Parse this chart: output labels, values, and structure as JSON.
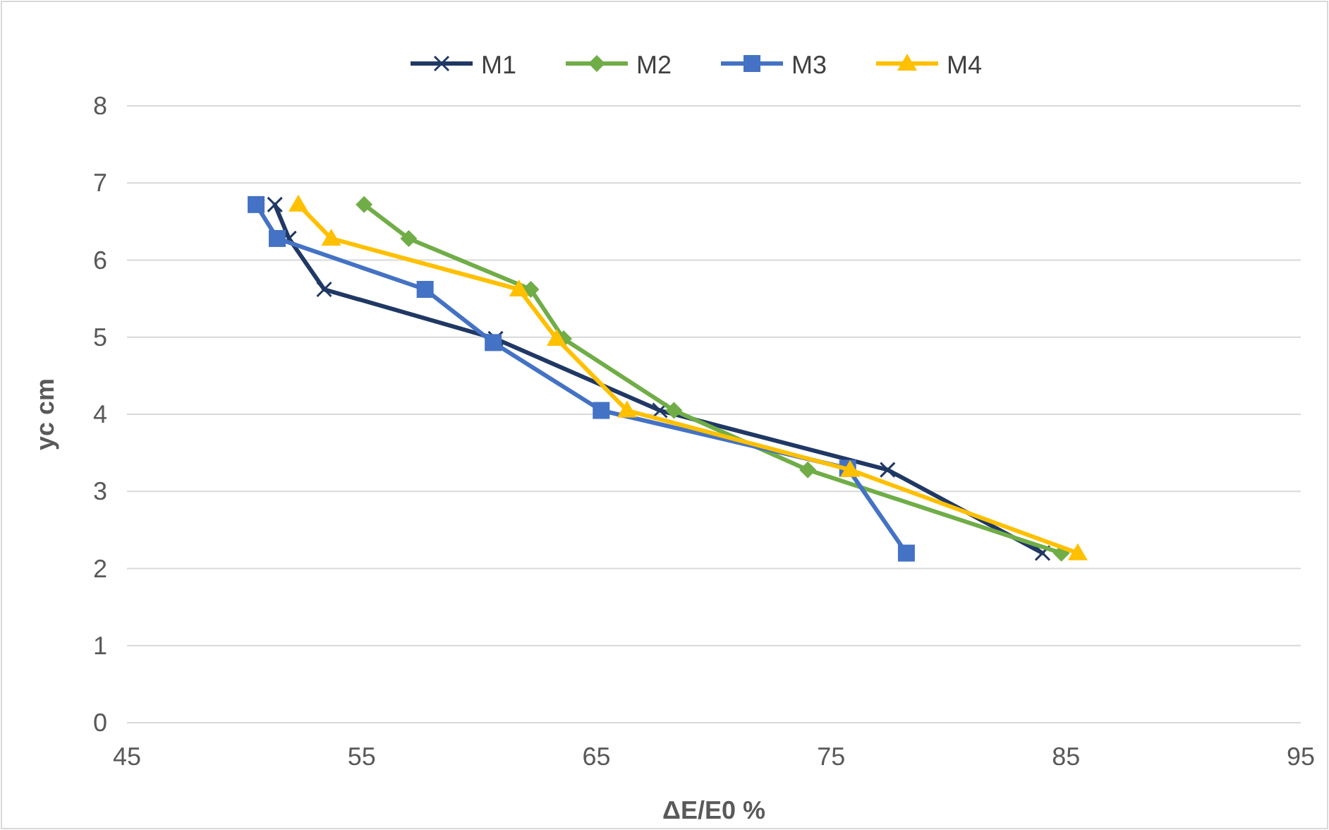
{
  "chart_data": {
    "type": "line",
    "xlabel": "ΔE/E0 %",
    "ylabel": "yc cm",
    "xlim": [
      45,
      95
    ],
    "xticks": [
      45,
      55,
      65,
      75,
      85,
      95
    ],
    "ylim": [
      0,
      8
    ],
    "yticks": [
      0,
      1,
      2,
      3,
      4,
      5,
      6,
      7,
      8
    ],
    "grid": "y",
    "legend": "top",
    "line_style": "solid",
    "series": [
      {
        "name": "M1",
        "color": "#203864",
        "marker": "cross",
        "x": [
          51.3,
          51.9,
          53.4,
          60.7,
          67.7,
          77.4,
          84.0
        ],
        "values": [
          6.72,
          6.28,
          5.62,
          4.98,
          4.05,
          3.28,
          2.2
        ]
      },
      {
        "name": "M2",
        "color": "#70ad47",
        "marker": "diamond",
        "x": [
          55.1,
          57.0,
          62.2,
          63.6,
          68.3,
          74.0,
          84.8
        ],
        "values": [
          6.72,
          6.28,
          5.62,
          4.98,
          4.05,
          3.28,
          2.2
        ]
      },
      {
        "name": "M3",
        "color": "#4472c4",
        "marker": "square",
        "x": [
          50.5,
          51.4,
          57.7,
          60.6,
          65.2,
          75.7,
          78.2
        ],
        "values": [
          6.72,
          6.28,
          5.62,
          4.93,
          4.05,
          3.3,
          2.2
        ]
      },
      {
        "name": "M4",
        "color": "#ffc000",
        "marker": "triangle",
        "x": [
          52.3,
          53.7,
          61.7,
          63.3,
          66.3,
          75.8,
          85.5
        ],
        "values": [
          6.72,
          6.28,
          5.62,
          4.98,
          4.05,
          3.28,
          2.2
        ]
      }
    ]
  }
}
